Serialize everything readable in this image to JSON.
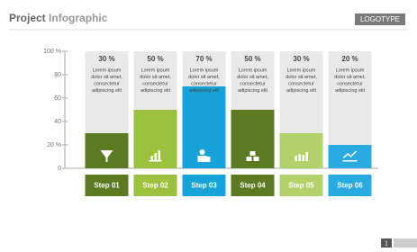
{
  "header": {
    "title_parts": [
      "Project",
      "Infographic"
    ],
    "logo": "LOGOTYPE",
    "page_number": "1"
  },
  "chart_data": {
    "type": "bar",
    "categories": [
      "Step 01",
      "Step 02",
      "Step 03",
      "Step 04",
      "Step 05",
      "Step 06"
    ],
    "values": [
      30,
      50,
      70,
      50,
      30,
      20
    ],
    "value_labels": [
      "30 %",
      "50 %",
      "70 %",
      "50 %",
      "30 %",
      "20 %"
    ],
    "colors": [
      "#5b7a22",
      "#9cc13f",
      "#17a3d8",
      "#5b7a22",
      "#b2d16a",
      "#29abe2"
    ],
    "description": [
      "Lorem ipsum",
      "dolor sit amet,",
      "consectetur",
      "adipiscing elit"
    ],
    "ylim": [
      0,
      100
    ],
    "yticks": [
      0,
      {
        "value": 20,
        "label": "20 %"
      },
      40,
      60,
      80,
      {
        "value": 100,
        "label": "100 %"
      }
    ]
  }
}
